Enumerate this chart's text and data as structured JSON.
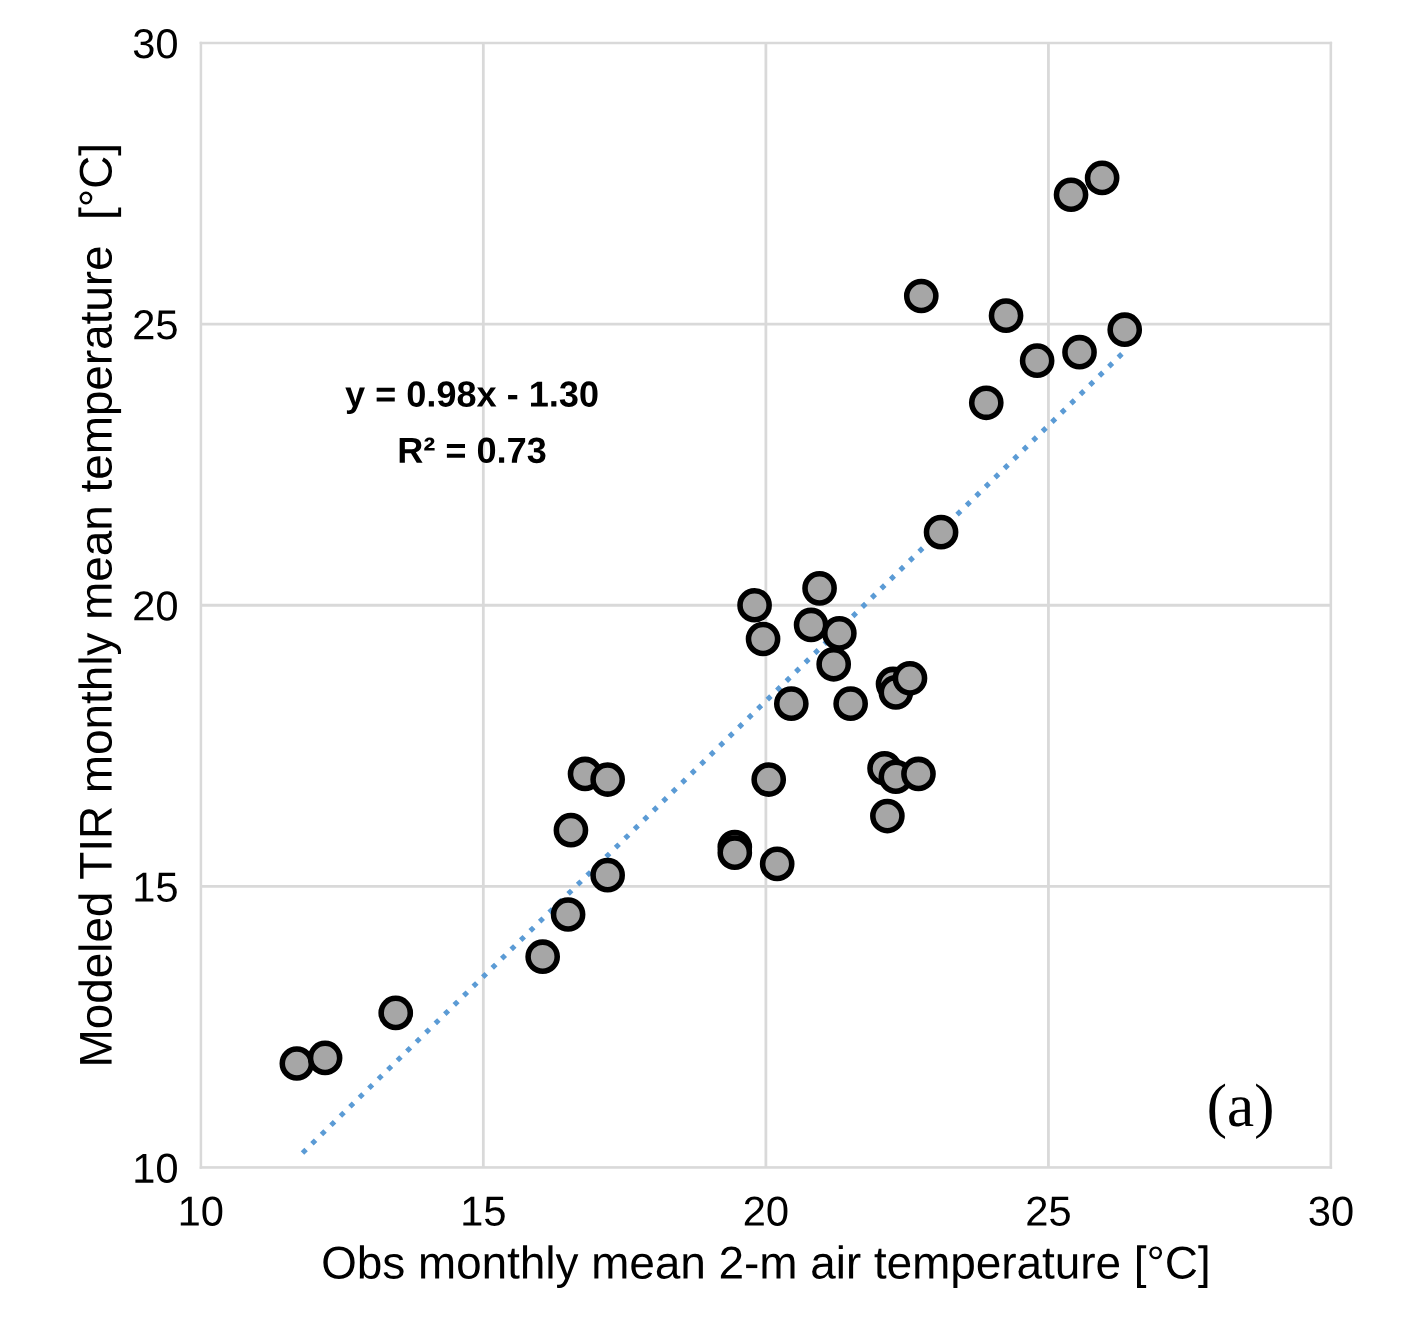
{
  "chart_data": {
    "type": "scatter",
    "xlabel": "Obs monthly mean 2-m air temperature [°C]",
    "ylabel": "Modeled TIR monthly mean temperature  [°C]",
    "xlim": [
      10,
      30
    ],
    "xticks": [
      10,
      15,
      20,
      25,
      30
    ],
    "ylim": [
      10,
      30
    ],
    "yticks": [
      10,
      15,
      20,
      25,
      30
    ],
    "grid": true,
    "legend": false,
    "annotations": [
      "y = 0.98x - 1.30",
      "R² = 0.73",
      "(a)"
    ],
    "series": [
      {
        "color": "#a6a6a6",
        "marker": "circle",
        "x": [
          11.7,
          12.2,
          13.45,
          16.05,
          16.5,
          17.2,
          16.55,
          16.8,
          17.2,
          19.45,
          19.45,
          19.8,
          19.95,
          20.05,
          20.2,
          20.95,
          20.8,
          21.3,
          21.2,
          20.45,
          21.5,
          22.25,
          22.3,
          22.55,
          22.1,
          22.3,
          22.7,
          22.15,
          23.1,
          23.9,
          24.8,
          25.55,
          26.35,
          24.25,
          22.75,
          25.4,
          25.95
        ],
        "values": [
          11.85,
          11.95,
          12.75,
          13.75,
          14.5,
          15.2,
          16.0,
          17.0,
          16.9,
          15.7,
          15.6,
          20.0,
          19.4,
          16.9,
          15.4,
          20.3,
          19.65,
          19.5,
          18.95,
          18.25,
          18.25,
          18.6,
          18.45,
          18.7,
          17.1,
          16.95,
          17.0,
          16.25,
          21.3,
          23.6,
          24.35,
          24.5,
          24.9,
          25.15,
          25.5,
          27.3,
          27.6
        ]
      },
      {
        "type": "line",
        "color": "#5b9bd5",
        "line_style": "dotted",
        "marker": "none",
        "x": [
          11.8,
          26.3
        ],
        "values": [
          10.26,
          24.47
        ]
      }
    ]
  }
}
